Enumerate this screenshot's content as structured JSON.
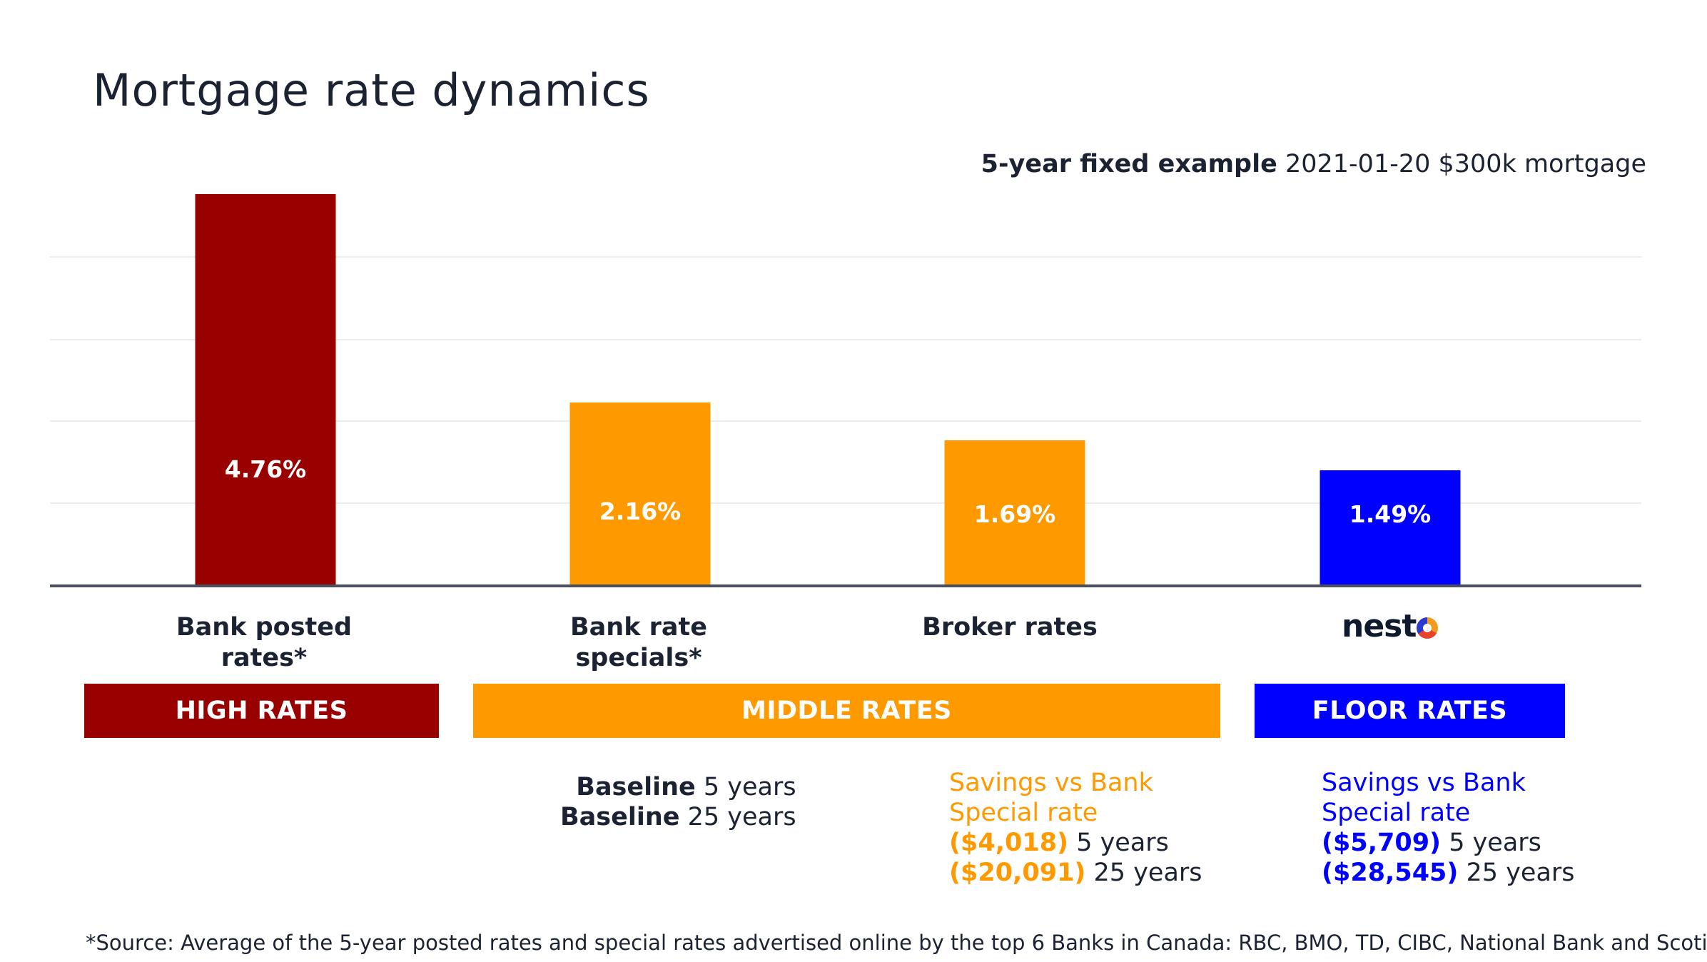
{
  "title": "Mortgage rate dynamics",
  "subtitle": {
    "bold": "5-year fixed example",
    "rest": " 2021-01-20 $300k mortgage"
  },
  "colors": {
    "high": "#990000",
    "middle": "#ff9900",
    "floor": "#0000ff",
    "text": "#1b2333",
    "grid": "#e6e6e6",
    "axis": "#4a5060"
  },
  "chart_data": {
    "type": "bar",
    "title": "Mortgage rate dynamics",
    "categories": [
      "Bank posted rates*",
      "Bank rate specials*",
      "Broker rates",
      "nesto"
    ],
    "values": [
      4.76,
      2.16,
      1.69,
      1.49
    ],
    "value_labels": [
      "4.76%",
      "2.16%",
      "1.69%",
      "1.49%"
    ],
    "colors": [
      "#990000",
      "#ff9900",
      "#ff9900",
      "#0000ff"
    ],
    "bar_heights_relative": [
      4.76,
      2.16,
      1.69,
      1.49
    ],
    "grid": true,
    "ylim": [
      0,
      5
    ]
  },
  "categories": {
    "bank_posted": [
      "Bank posted",
      "rates*"
    ],
    "bank_specials": [
      "Bank rate",
      "specials*"
    ],
    "broker": "Broker rates",
    "brand": {
      "text": "nest",
      "last": "o"
    }
  },
  "bands": {
    "high": "HIGH RATES",
    "middle": "MIDDLE RATES",
    "floor": "FLOOR RATES"
  },
  "baseline": {
    "label": "Baseline",
    "five": " 5 years",
    "twentyfive": " 25 years"
  },
  "savings_middle": {
    "line1": "Savings vs Bank",
    "line2": "Special rate",
    "amount5": "($4,018)",
    "years5": " 5 years",
    "amount25": "($20,091)",
    "years25": " 25 years"
  },
  "savings_floor": {
    "line1": "Savings vs Bank",
    "line2": "Special rate",
    "amount5": "($5,709)",
    "years5": " 5 years",
    "amount25": "($28,545)",
    "years25": " 25 years"
  },
  "footnote": "*Source: Average of the 5-year posted rates and special rates advertised online by the top 6 Banks in Canada: RBC, BMO, TD, CIBC, National Bank and Scotiabank"
}
